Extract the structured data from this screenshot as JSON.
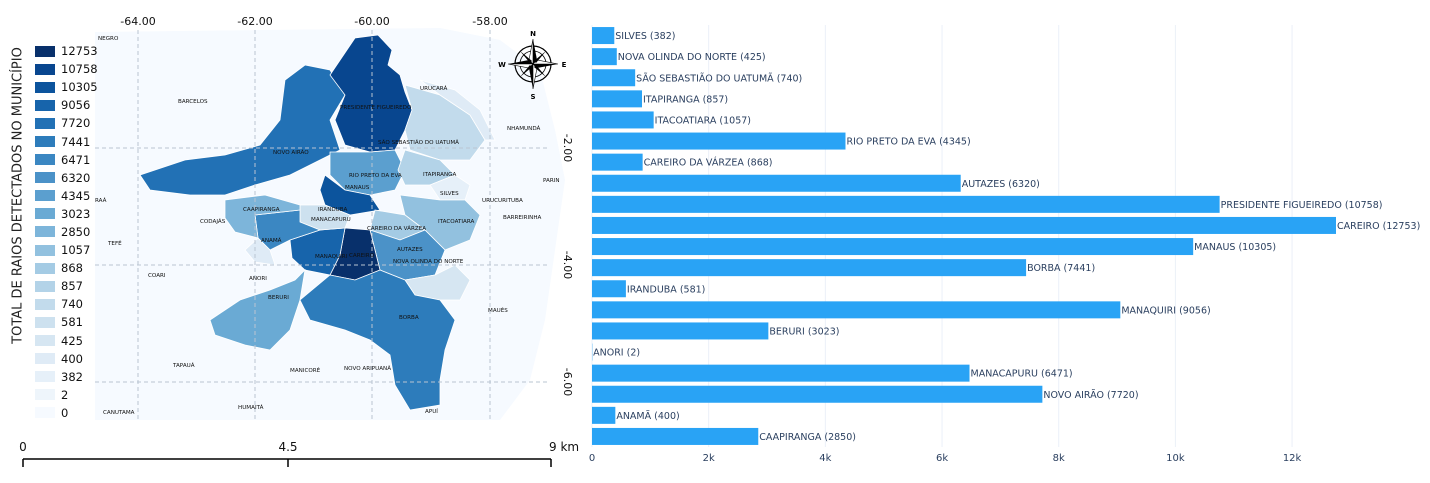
{
  "map": {
    "y_axis_title": "TOTAL DE RAIOS DETECTADOS NO MUNICÍPIO",
    "lon_ticks": [
      "-64.00",
      "-62.00",
      "-60.00",
      "-58.00"
    ],
    "lat_ticks": [
      "-2.00",
      "-4.00",
      "-6.00"
    ],
    "legend": [
      {
        "value": "12753",
        "color": "#08306b"
      },
      {
        "value": "10758",
        "color": "#08468f"
      },
      {
        "value": "10305",
        "color": "#0c549d"
      },
      {
        "value": "9056",
        "color": "#1764ab"
      },
      {
        "value": "7720",
        "color": "#2271b5"
      },
      {
        "value": "7441",
        "color": "#2d7cbb"
      },
      {
        "value": "6471",
        "color": "#3b87c2"
      },
      {
        "value": "6320",
        "color": "#4b92c8"
      },
      {
        "value": "4345",
        "color": "#5b9fcf"
      },
      {
        "value": "3023",
        "color": "#6aaad4"
      },
      {
        "value": "2850",
        "color": "#7db5da"
      },
      {
        "value": "1057",
        "color": "#92c1df"
      },
      {
        "value": "868",
        "color": "#a4cbe4"
      },
      {
        "value": "857",
        "color": "#b3d3e8"
      },
      {
        "value": "740",
        "color": "#c2dbec"
      },
      {
        "value": "581",
        "color": "#cde1ef"
      },
      {
        "value": "425",
        "color": "#d6e6f2"
      },
      {
        "value": "400",
        "color": "#dfebf6"
      },
      {
        "value": "382",
        "color": "#e6f0f9"
      },
      {
        "value": "2",
        "color": "#eef5fb"
      },
      {
        "value": "0",
        "color": "#f6faff"
      }
    ],
    "compass": {
      "n": "N",
      "s": "S",
      "e": "E",
      "w": "W"
    },
    "scale_bar": {
      "start": "0",
      "mid": "4.5",
      "end": "9 km"
    },
    "labels": {
      "negro": "NEGRO",
      "barcelos": "BARCELOS",
      "urucara": "URUCARÁ",
      "nhamunda": "NHAMUNDÁ",
      "pres_fig": "PRESIDENTE FIGUEIREDO",
      "sao_seb": "SÃO SEBASTIÃO DO UATUMÃ",
      "novo_airao": "NOVO AIRÃO",
      "rio_preto": "RIO PRETO DA EVA",
      "itapiranga": "ITAPIRANGA",
      "parin": "PARIN",
      "manaus": "MANAUS",
      "silves": "SILVES",
      "urucurituba": "URUCURITUBA",
      "raa": "RAÁ",
      "caapiranga": "CAAPIRANGA",
      "iranduba": "IRANDUBA",
      "barreirinha": "BARREIRINHA",
      "codajas": "CODAJÁS",
      "manacapuru": "MANACAPURU",
      "itacoatiara": "ITACOATIARA",
      "careiro_varzea": "CAREIRO DA VÁRZEA",
      "tefe": "TEFÉ",
      "anama": "ANAMÃ",
      "autazes": "AUTAZES",
      "manaquiri": "MANAQUIRI",
      "careiro": "CAREIRO",
      "nova_olinda": "NOVA OLINDA DO NORTE",
      "coari": "COARI",
      "anori": "ANORI",
      "beruri": "BERURI",
      "maues": "MAUÉS",
      "borba": "BORBA",
      "tapaua": "TAPAUÁ",
      "manicore": "MANICORÉ",
      "novo_aripuana": "NOVO ARIPUANÃ",
      "canutama": "CANUTAMA",
      "humaita": "HUMAITÁ",
      "apui": "APUÍ"
    }
  },
  "chart_data": {
    "type": "bar",
    "orientation": "horizontal",
    "color": "#29a3f5",
    "categories": [
      "SILVES",
      "NOVA OLINDA DO NORTE",
      "SÃO SEBASTIÃO DO UATUMÃ",
      "ITAPIRANGA",
      "ITACOATIARA",
      "RIO PRETO DA EVA",
      "CAREIRO DA VÁRZEA",
      "AUTAZES",
      "PRESIDENTE FIGUEIREDO",
      "CAREIRO",
      "MANAUS",
      "BORBA",
      "IRANDUBA",
      "MANAQUIRI",
      "BERURI",
      "ANORI",
      "MANACAPURU",
      "NOVO AIRÃO",
      "ANAMÃ",
      "CAAPIRANGA"
    ],
    "values": [
      382,
      425,
      740,
      857,
      1057,
      4345,
      868,
      6320,
      10758,
      12753,
      10305,
      7441,
      581,
      9056,
      3023,
      2,
      6471,
      7720,
      400,
      2850
    ],
    "bar_labels": [
      "SILVES (382)",
      "NOVA OLINDA DO NORTE (425)",
      "SÃO SEBASTIÃO DO UATUMÃ (740)",
      "ITAPIRANGA (857)",
      "ITACOATIARA (1057)",
      "RIO PRETO DA EVA (4345)",
      "CAREIRO DA VÁRZEA (868)",
      "AUTAZES (6320)",
      "PRESIDENTE FIGUEIREDO (10758)",
      "CAREIRO (12753)",
      "MANAUS (10305)",
      "BORBA (7441)",
      "IRANDUBA (581)",
      "MANAQUIRI (9056)",
      "BERURI (3023)",
      "ANORI (2)",
      "MANACAPURU (6471)",
      "NOVO AIRÃO (7720)",
      "ANAMÃ (400)",
      "CAAPIRANGA (2850)"
    ],
    "x_ticks": [
      0,
      2000,
      4000,
      6000,
      8000,
      10000,
      12000
    ],
    "x_tick_labels": [
      "0",
      "2k",
      "4k",
      "6k",
      "8k",
      "10k",
      "12k"
    ],
    "xlim": [
      0,
      12753
    ],
    "grid": true
  }
}
